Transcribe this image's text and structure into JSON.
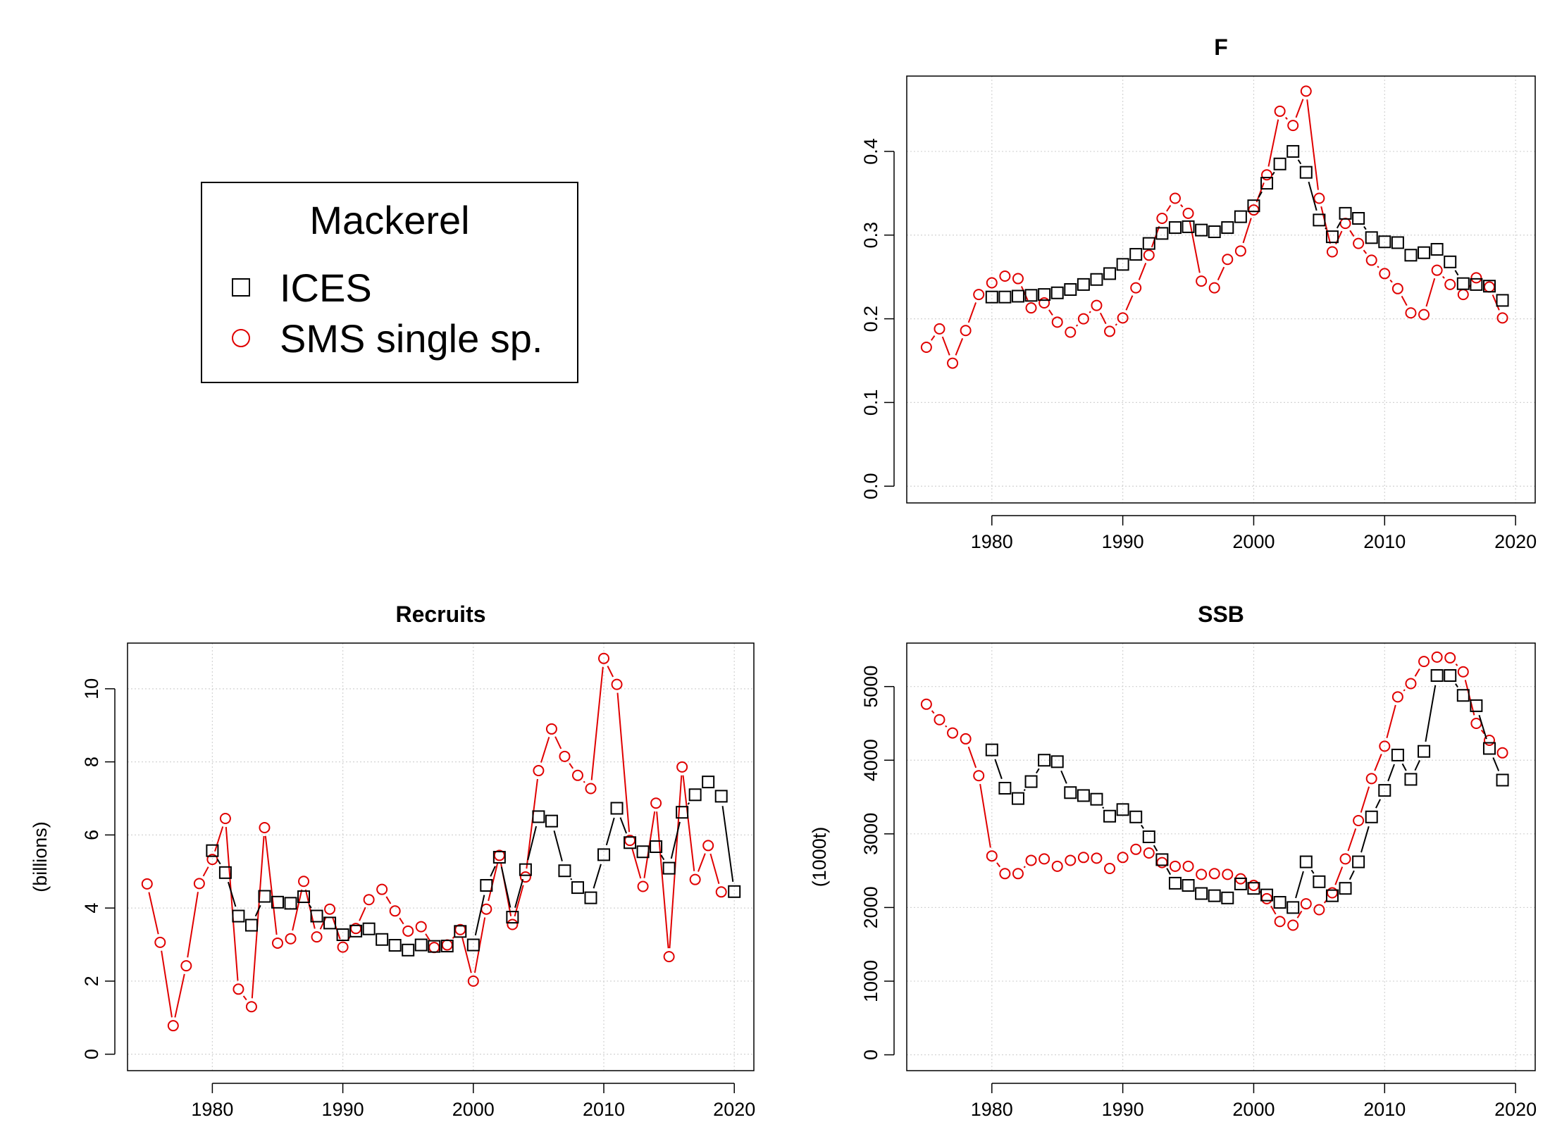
{
  "legend": {
    "title": "Mackerel",
    "items": [
      {
        "label": "ICES",
        "symbol": "square",
        "color": "#000000"
      },
      {
        "label": "SMS single sp.",
        "symbol": "circle",
        "color": "#e00000"
      }
    ]
  },
  "chart_data": [
    {
      "id": "F",
      "type": "line",
      "title": "F",
      "xlabel": "",
      "ylabel": "",
      "xlim": [
        1973.5,
        2021.5
      ],
      "ylim": [
        -0.02,
        0.49
      ],
      "xticks": [
        1980,
        1990,
        2000,
        2010,
        2020
      ],
      "yticks": [
        0.0,
        0.1,
        0.2,
        0.3,
        0.4
      ],
      "ytick_labels": [
        "0.0",
        "0.1",
        "0.2",
        "0.3",
        "0.4"
      ],
      "grid": true,
      "series": [
        {
          "name": "ICES",
          "color": "#000000",
          "marker": "square",
          "x": [
            1980,
            1981,
            1982,
            1983,
            1984,
            1985,
            1986,
            1987,
            1988,
            1989,
            1990,
            1991,
            1992,
            1993,
            1994,
            1995,
            1996,
            1997,
            1998,
            1999,
            2000,
            2001,
            2002,
            2003,
            2004,
            2005,
            2006,
            2007,
            2008,
            2009,
            2010,
            2011,
            2012,
            2013,
            2014,
            2015,
            2016,
            2017,
            2018,
            2019
          ],
          "y": [
            0.226,
            0.226,
            0.227,
            0.228,
            0.229,
            0.231,
            0.235,
            0.241,
            0.247,
            0.254,
            0.265,
            0.277,
            0.29,
            0.302,
            0.309,
            0.31,
            0.306,
            0.304,
            0.309,
            0.322,
            0.335,
            0.362,
            0.385,
            0.4,
            0.375,
            0.318,
            0.298,
            0.326,
            0.32,
            0.297,
            0.292,
            0.291,
            0.276,
            0.279,
            0.283,
            0.268,
            0.242,
            0.241,
            0.239,
            0.222
          ]
        },
        {
          "name": "SMS single sp.",
          "color": "#e00000",
          "marker": "circle",
          "x": [
            1975,
            1976,
            1977,
            1978,
            1979,
            1980,
            1981,
            1982,
            1983,
            1984,
            1985,
            1986,
            1987,
            1988,
            1989,
            1990,
            1991,
            1992,
            1993,
            1994,
            1995,
            1996,
            1997,
            1998,
            1999,
            2000,
            2001,
            2002,
            2003,
            2004,
            2005,
            2006,
            2007,
            2008,
            2009,
            2010,
            2011,
            2012,
            2013,
            2014,
            2015,
            2016,
            2017,
            2018,
            2019
          ],
          "y": [
            0.166,
            0.188,
            0.147,
            0.186,
            0.229,
            0.243,
            0.251,
            0.248,
            0.213,
            0.219,
            0.196,
            0.184,
            0.2,
            0.216,
            0.185,
            0.201,
            0.237,
            0.276,
            0.32,
            0.344,
            0.326,
            0.245,
            0.237,
            0.271,
            0.281,
            0.33,
            0.372,
            0.448,
            0.431,
            0.472,
            0.344,
            0.28,
            0.314,
            0.29,
            0.27,
            0.254,
            0.236,
            0.207,
            0.205,
            0.258,
            0.241,
            0.229,
            0.249,
            0.238,
            0.201
          ]
        }
      ]
    },
    {
      "id": "Recruits",
      "type": "line",
      "title": "Recruits",
      "xlabel": "",
      "ylabel": "(billions)",
      "xlim": [
        1973.5,
        2021.5
      ],
      "ylim": [
        -0.45,
        11.25
      ],
      "xticks": [
        1980,
        1990,
        2000,
        2010,
        2020
      ],
      "yticks": [
        0,
        2,
        4,
        6,
        8,
        10
      ],
      "ytick_labels": [
        "0",
        "2",
        "4",
        "6",
        "8",
        "10"
      ],
      "grid": true,
      "series": [
        {
          "name": "ICES",
          "color": "#000000",
          "marker": "square",
          "x": [
            1980,
            1981,
            1982,
            1983,
            1984,
            1985,
            1986,
            1987,
            1988,
            1989,
            1990,
            1991,
            1992,
            1993,
            1994,
            1995,
            1996,
            1997,
            1998,
            1999,
            2000,
            2001,
            2002,
            2003,
            2004,
            2005,
            2006,
            2007,
            2008,
            2009,
            2010,
            2011,
            2012,
            2013,
            2014,
            2015,
            2016,
            2017,
            2018,
            2019,
            2020
          ],
          "y": [
            5.57,
            4.97,
            3.78,
            3.53,
            4.32,
            4.16,
            4.13,
            4.31,
            3.78,
            3.59,
            3.27,
            3.37,
            3.43,
            3.14,
            2.98,
            2.85,
            2.99,
            2.95,
            2.96,
            3.36,
            2.99,
            4.62,
            5.39,
            3.75,
            5.05,
            6.5,
            6.38,
            5.02,
            4.56,
            4.28,
            5.46,
            6.73,
            5.79,
            5.54,
            5.68,
            5.09,
            6.62,
            7.1,
            7.45,
            7.06,
            4.45
          ]
        },
        {
          "name": "SMS single sp.",
          "color": "#e00000",
          "marker": "circle",
          "x": [
            1975,
            1976,
            1977,
            1978,
            1979,
            1980,
            1981,
            1982,
            1983,
            1984,
            1985,
            1986,
            1987,
            1988,
            1989,
            1990,
            1991,
            1992,
            1993,
            1994,
            1995,
            1996,
            1997,
            1998,
            1999,
            2000,
            2001,
            2002,
            2003,
            2004,
            2005,
            2006,
            2007,
            2008,
            2009,
            2010,
            2011,
            2012,
            2013,
            2014,
            2015,
            2016,
            2017,
            2018,
            2019
          ],
          "y": [
            4.66,
            3.06,
            0.78,
            2.42,
            4.67,
            5.33,
            6.45,
            1.78,
            1.3,
            6.2,
            3.04,
            3.16,
            4.73,
            3.21,
            3.97,
            2.93,
            3.44,
            4.23,
            4.51,
            3.92,
            3.37,
            3.49,
            2.92,
            2.99,
            3.41,
            2.0,
            3.97,
            5.44,
            3.55,
            4.85,
            7.76,
            8.9,
            8.15,
            7.63,
            7.27,
            10.83,
            10.12,
            5.85,
            4.59,
            6.87,
            2.67,
            7.86,
            4.78,
            5.71,
            4.44
          ]
        }
      ]
    },
    {
      "id": "SSB",
      "type": "line",
      "title": "SSB",
      "xlabel": "",
      "ylabel": "(1000t)",
      "xlim": [
        1973.5,
        2021.5
      ],
      "ylim": [
        -215,
        5590
      ],
      "xticks": [
        1980,
        1990,
        2000,
        2010,
        2020
      ],
      "yticks": [
        0,
        1000,
        2000,
        3000,
        4000,
        5000
      ],
      "ytick_labels": [
        "0",
        "1000",
        "2000",
        "3000",
        "4000",
        "5000"
      ],
      "grid": true,
      "series": [
        {
          "name": "ICES",
          "color": "#000000",
          "marker": "square",
          "x": [
            1980,
            1981,
            1982,
            1983,
            1984,
            1985,
            1986,
            1987,
            1988,
            1989,
            1990,
            1991,
            1992,
            1993,
            1994,
            1995,
            1996,
            1997,
            1998,
            1999,
            2000,
            2001,
            2002,
            2003,
            2004,
            2005,
            2006,
            2007,
            2008,
            2009,
            2010,
            2011,
            2012,
            2013,
            2014,
            2015,
            2016,
            2017,
            2018,
            2019
          ],
          "y": [
            4140,
            3620,
            3480,
            3710,
            4000,
            3980,
            3560,
            3520,
            3470,
            3240,
            3330,
            3230,
            2960,
            2650,
            2330,
            2300,
            2190,
            2160,
            2130,
            2320,
            2260,
            2170,
            2070,
            2000,
            2620,
            2350,
            2160,
            2260,
            2620,
            3230,
            3590,
            4070,
            3740,
            4120,
            5150,
            5150,
            4880,
            4740,
            4160,
            3730
          ]
        },
        {
          "name": "SMS single sp.",
          "color": "#e00000",
          "marker": "circle",
          "x": [
            1975,
            1976,
            1977,
            1978,
            1979,
            1980,
            1981,
            1982,
            1983,
            1984,
            1985,
            1986,
            1987,
            1988,
            1989,
            1990,
            1991,
            1992,
            1993,
            1994,
            1995,
            1996,
            1997,
            1998,
            1999,
            2000,
            2001,
            2002,
            2003,
            2004,
            2005,
            2006,
            2007,
            2008,
            2009,
            2010,
            2011,
            2012,
            2013,
            2014,
            2015,
            2016,
            2017,
            2018,
            2019
          ],
          "y": [
            4760,
            4550,
            4370,
            4290,
            3790,
            2700,
            2460,
            2460,
            2640,
            2660,
            2560,
            2640,
            2680,
            2670,
            2530,
            2680,
            2790,
            2740,
            2610,
            2560,
            2560,
            2450,
            2460,
            2450,
            2390,
            2300,
            2120,
            1810,
            1760,
            2050,
            1970,
            2200,
            2660,
            3180,
            3750,
            4190,
            4860,
            5040,
            5340,
            5400,
            5390,
            5200,
            4500,
            4270,
            4100
          ]
        }
      ]
    }
  ]
}
